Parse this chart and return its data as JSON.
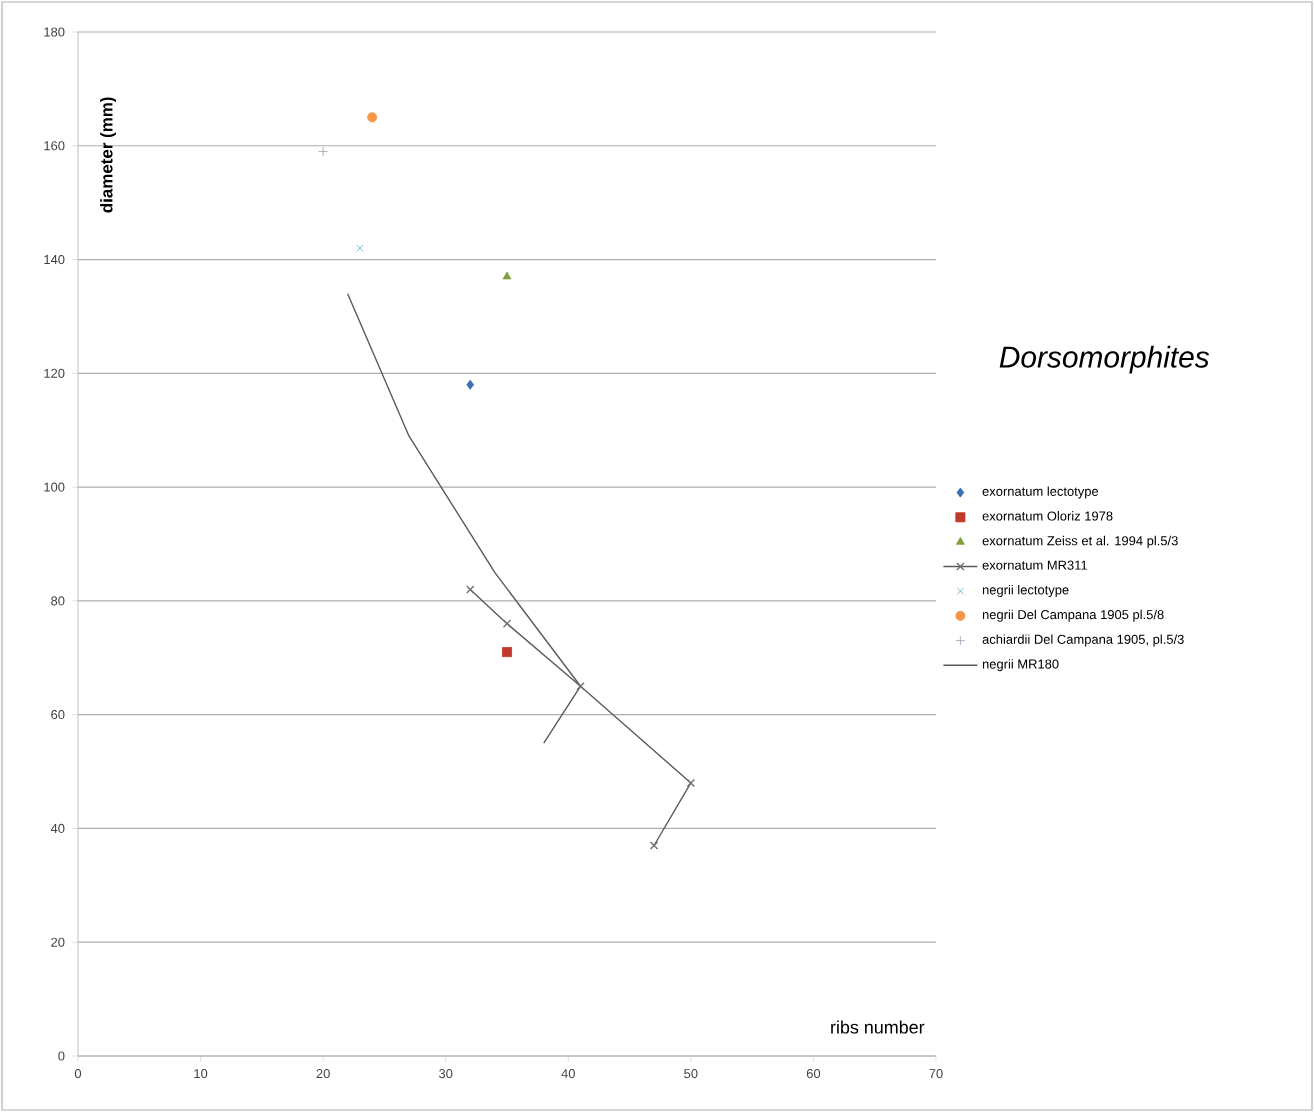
{
  "chart_data": {
    "type": "scatter",
    "title": "Dorsomorphites",
    "xlabel": "ribs number",
    "ylabel": "diameter (mm)",
    "xlim": [
      0,
      70
    ],
    "ylim": [
      0,
      180
    ],
    "xticks": [
      0,
      10,
      20,
      30,
      40,
      50,
      60,
      70
    ],
    "yticks": [
      0,
      20,
      40,
      60,
      80,
      100,
      120,
      140,
      160,
      180
    ],
    "grid": "y",
    "legend": "right",
    "series": [
      {
        "name": "exornatum lectotype",
        "color": "#3f6fb0",
        "marker": "diamond",
        "x": [
          32
        ],
        "values": [
          118
        ]
      },
      {
        "name": "exornatum Oloriz 1978",
        "color": "#c0392b",
        "marker": "square",
        "x": [
          35
        ],
        "values": [
          71
        ]
      },
      {
        "name": "exornatum Zeiss  et al. 1994 pl.5/3",
        "color": "#7fa03c",
        "marker": "triangle",
        "x": [
          35
        ],
        "values": [
          137
        ]
      },
      {
        "name": "exornatum MR311",
        "color": "#707070",
        "marker": "cross",
        "type": "line",
        "x": [
          32,
          35,
          41,
          50,
          47
        ],
        "values": [
          82,
          76,
          65,
          48,
          37
        ]
      },
      {
        "name": "negrii lectotype",
        "color": "#4bacc6",
        "marker": "cross",
        "x": [
          23
        ],
        "values": [
          142
        ]
      },
      {
        "name": "negrii Del Campana 1905 pl.5/8",
        "color": "#f79646",
        "marker": "circle",
        "x": [
          24
        ],
        "values": [
          165
        ]
      },
      {
        "name": "achiardii Del Campana 1905, pl.5/3",
        "color": "#9aa0b8",
        "marker": "plus",
        "x": [
          20
        ],
        "values": [
          159
        ]
      },
      {
        "name": "negrii MR180",
        "color": "#555555",
        "marker": "none",
        "type": "line",
        "x": [
          22,
          27,
          34,
          41,
          38
        ],
        "values": [
          134,
          109,
          85,
          65,
          55
        ]
      }
    ]
  }
}
